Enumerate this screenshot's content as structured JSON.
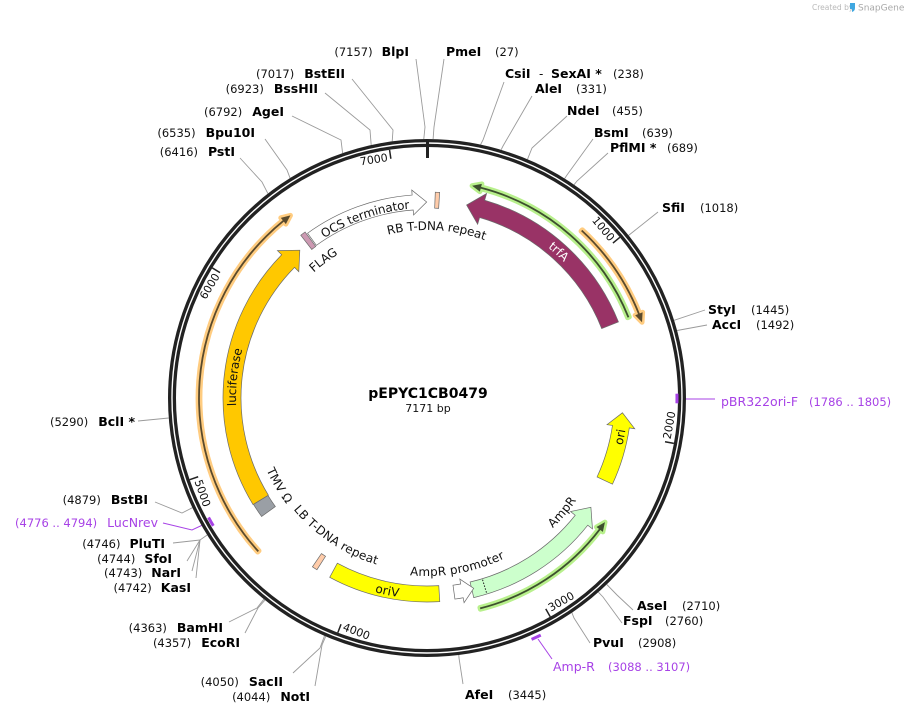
{
  "watermark": {
    "prefix": "Created by",
    "brand": "SnapGene",
    "logo_color": "#3fa7e0"
  },
  "plasmid": {
    "name": "pEPYC1CB0479",
    "length_label": "7171 bp",
    "length_bp": 7171
  },
  "ticks": [
    {
      "bp": 1000,
      "label": "1000"
    },
    {
      "bp": 2000,
      "label": "2000"
    },
    {
      "bp": 3000,
      "label": "3000"
    },
    {
      "bp": 4000,
      "label": "4000"
    },
    {
      "bp": 5000,
      "label": "5000"
    },
    {
      "bp": 6000,
      "label": "6000"
    },
    {
      "bp": 7000,
      "label": "7000"
    }
  ],
  "features": [
    {
      "label": "trfA",
      "start": 231,
      "end": 1361,
      "direction": -1,
      "fill": "#993366",
      "text_color": "#ffffff"
    },
    {
      "label": "ori",
      "start": 1879,
      "end": 2289,
      "direction": -1,
      "fill": "#ffff00",
      "text_color": "#111111"
    },
    {
      "label": "AmpR",
      "start": 2464,
      "end": 3323,
      "direction": -1,
      "fill": "#ccffcc",
      "text_color": "#111111",
      "divider_bp": 3247
    },
    {
      "label": "AmpR promoter",
      "start": 3311,
      "end": 3428,
      "direction": -1,
      "fill": "#ffffff",
      "text_color": "#111111"
    },
    {
      "label": "oriV",
      "start": 3514,
      "end": 4153,
      "direction": 0,
      "fill": "#ffff00",
      "text_color": "#111111"
    },
    {
      "label": "LB T-DNA repeat",
      "start": 4236,
      "end": 4266,
      "direction": 0,
      "fill": "#ffccaa",
      "text_color": "#111111"
    },
    {
      "label": "TMV Ω",
      "start": 4669,
      "end": 4751,
      "direction": 0,
      "fill": "#9a9fa5",
      "text_color": "#111111"
    },
    {
      "label": "luciferase",
      "start": 4751,
      "end": 6360,
      "direction": 1,
      "fill": "#ffc800",
      "text_color": "#111111"
    },
    {
      "label": "FLAG",
      "start": 6418,
      "end": 6448,
      "direction": 0,
      "fill": "#cc99b2",
      "text_color": "#111111"
    },
    {
      "label": "OCS terminator",
      "start": 6455,
      "end": 7169,
      "direction": 1,
      "fill": "#ffffff",
      "text_color": "#111111"
    },
    {
      "label": "RB T-DNA repeat",
      "start": 46,
      "end": 70,
      "direction": 0,
      "fill": "#ffccaa",
      "text_color": "#111111"
    }
  ],
  "orfs": [
    {
      "start": 239,
      "end": 1358,
      "direction": -1,
      "halo": "#b8f08c",
      "line": "#3d4f2e"
    },
    {
      "start": 851,
      "end": 1406,
      "direction": 1,
      "halo": "#ffcc80",
      "line": "#5a4a2c"
    },
    {
      "start": 2488,
      "end": 3303,
      "direction": -1,
      "halo": "#b8f08c",
      "line": "#3d4f2e"
    },
    {
      "start": 4536,
      "end": 6438,
      "direction": 1,
      "halo": "#ffcc80",
      "line": "#5a4a2c"
    }
  ],
  "sites": [
    {
      "name": "BlpI",
      "position": "(7157)"
    },
    {
      "name": "PmeI",
      "position": "(27)"
    },
    {
      "name": "CsiI",
      "separator": "-",
      "name2": "SexAI *",
      "position": "(238)"
    },
    {
      "name": "AleI",
      "position": "(331)"
    },
    {
      "name": "NdeI",
      "position": "(455)"
    },
    {
      "name": "BsmI",
      "position": "(639)"
    },
    {
      "name": "PflMI *",
      "position": "(689)"
    },
    {
      "name": "SfiI",
      "position": "(1018)"
    },
    {
      "name": "StyI",
      "position": "(1445)"
    },
    {
      "name": "AccI",
      "position": "(1492)"
    },
    {
      "name": "AseI",
      "position": "(2710)"
    },
    {
      "name": "FspI",
      "position": "(2760)"
    },
    {
      "name": "PvuI",
      "position": "(2908)"
    },
    {
      "name": "AfeI",
      "position": "(3445)"
    },
    {
      "name": "NotI",
      "position": "(4044)"
    },
    {
      "name": "SacII",
      "position": "(4050)"
    },
    {
      "name": "EcoRI",
      "position": "(4357)"
    },
    {
      "name": "BamHI",
      "position": "(4363)"
    },
    {
      "name": "KasI",
      "position": "(4742)"
    },
    {
      "name": "NarI",
      "position": "(4743)"
    },
    {
      "name": "SfoI",
      "position": "(4744)"
    },
    {
      "name": "PluTI",
      "position": "(4746)"
    },
    {
      "name": "BstBI",
      "position": "(4879)"
    },
    {
      "name": "BclI *",
      "position": "(5290)"
    },
    {
      "name": "PstI",
      "position": "(6416)"
    },
    {
      "name": "Bpu10I",
      "position": "(6535)"
    },
    {
      "name": "AgeI",
      "position": "(6792)"
    },
    {
      "name": "BssHII",
      "position": "(6923)"
    },
    {
      "name": "BstEII",
      "position": "(7017)"
    }
  ],
  "primers": [
    {
      "name": "pBR322ori-F",
      "range": "(1786 .. 1805)",
      "bp": 1795
    },
    {
      "name": "Amp-R",
      "range": "(3088 .. 3107)",
      "bp": 3097
    },
    {
      "name": "LucNrev",
      "range": "(4776 .. 4794)",
      "bp": 4785
    }
  ],
  "colors": {
    "backbone": "#222222",
    "primer": "#a742e6",
    "leader": "#9a9a9a"
  }
}
